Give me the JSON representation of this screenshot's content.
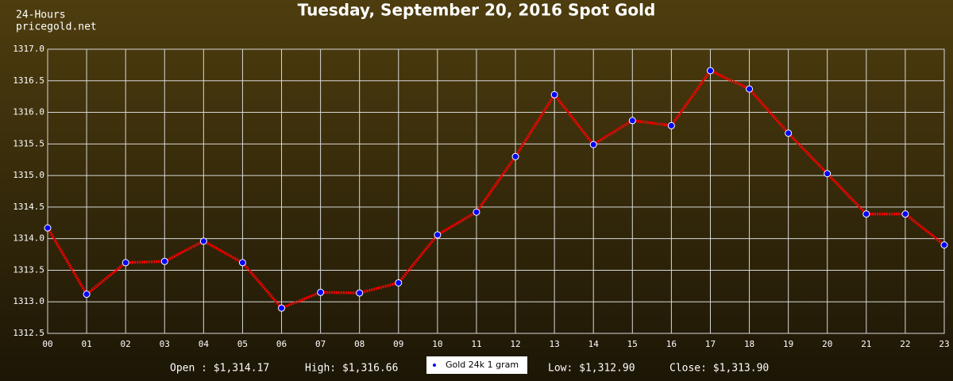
{
  "chart_data": {
    "type": "line",
    "title": "Tuesday, September 20, 2016 Spot Gold",
    "header": [
      "24-Hours",
      "pricegold.net"
    ],
    "categories": [
      "00",
      "01",
      "02",
      "03",
      "04",
      "05",
      "06",
      "07",
      "08",
      "09",
      "10",
      "11",
      "12",
      "13",
      "14",
      "15",
      "16",
      "17",
      "18",
      "19",
      "20",
      "21",
      "22",
      "23"
    ],
    "series": [
      {
        "name": "Gold 24k 1 gram",
        "color": "#ff0000",
        "marker_color": "#0000ff",
        "values": [
          1314.17,
          1313.12,
          1313.62,
          1313.64,
          1313.96,
          1313.62,
          1312.9,
          1313.15,
          1313.14,
          1313.3,
          1314.06,
          1314.42,
          1315.3,
          1316.28,
          1315.49,
          1315.87,
          1315.79,
          1316.66,
          1316.37,
          1315.67,
          1315.03,
          1314.39,
          1314.39,
          1313.9
        ]
      }
    ],
    "ylim": [
      1312.5,
      1317.0
    ],
    "yticks": [
      {
        "value": 1312.5,
        "label": "1312.5"
      },
      {
        "value": 1313,
        "label": "1313.0"
      },
      {
        "value": 1313.5,
        "label": "1313.5"
      },
      {
        "value": 1314,
        "label": "1314.0"
      },
      {
        "value": 1314.5,
        "label": "1314.5"
      },
      {
        "value": 1315,
        "label": "1315.0"
      },
      {
        "value": 1315.5,
        "label": "1315.5"
      },
      {
        "value": 1316,
        "label": "1316.0"
      },
      {
        "value": 1316.5,
        "label": "1316.5"
      },
      {
        "value": 1317,
        "label": "1317.0"
      }
    ],
    "grid": true,
    "footer": [
      "Open : $1,314.17",
      "High: $1,316.66",
      "Low: $1,312.90",
      "Close: $1,313.90"
    ]
  }
}
